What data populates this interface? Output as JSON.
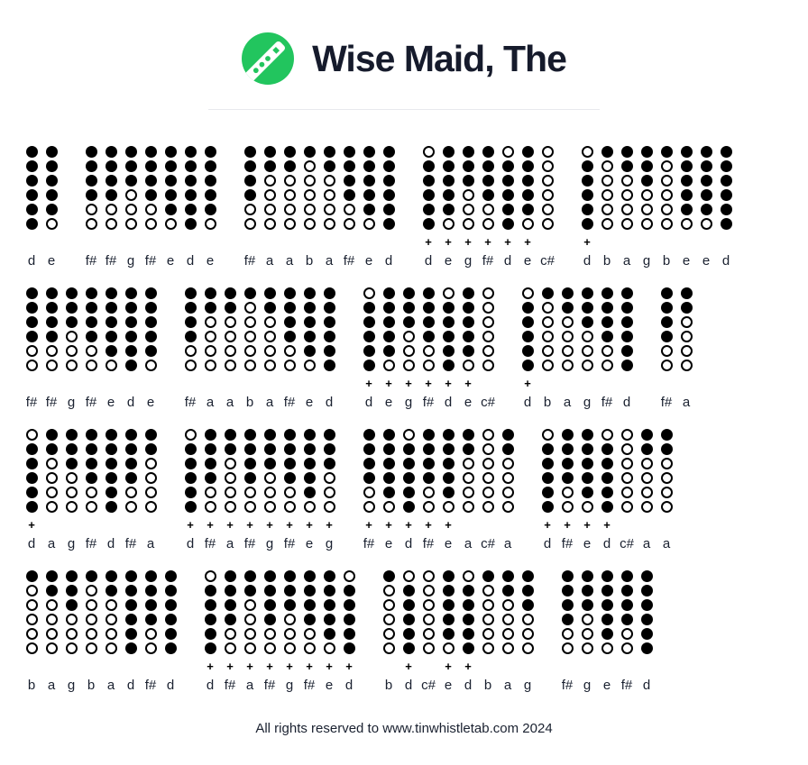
{
  "header": {
    "title": "Wise Maid, The",
    "logo_icon": "tin-whistle-icon"
  },
  "colors": {
    "accent_green": "#22c55e",
    "ink": "#000000",
    "text_dark": "#161b2c",
    "divider": "#e8e9ed"
  },
  "tab": {
    "octave_marker": "+",
    "hole_legend": {
      "1": "closed",
      "0": "open"
    },
    "rows": [
      {
        "groups": [
          {
            "notes": [
              {
                "n": "d",
                "h": "111111",
                "p": false
              },
              {
                "n": "e",
                "h": "111110",
                "p": false
              }
            ]
          },
          {
            "notes": [
              {
                "n": "f#",
                "h": "111100",
                "p": false
              },
              {
                "n": "f#",
                "h": "111100",
                "p": false
              },
              {
                "n": "g",
                "h": "111000",
                "p": false
              },
              {
                "n": "f#",
                "h": "111100",
                "p": false
              },
              {
                "n": "e",
                "h": "111110",
                "p": false
              },
              {
                "n": "d",
                "h": "111111",
                "p": false
              },
              {
                "n": "e",
                "h": "111110",
                "p": false
              }
            ]
          },
          {
            "notes": [
              {
                "n": "f#",
                "h": "111100",
                "p": false
              },
              {
                "n": "a",
                "h": "110000",
                "p": false
              },
              {
                "n": "a",
                "h": "110000",
                "p": false
              },
              {
                "n": "b",
                "h": "100000",
                "p": false
              },
              {
                "n": "a",
                "h": "110000",
                "p": false
              },
              {
                "n": "f#",
                "h": "111100",
                "p": false
              },
              {
                "n": "e",
                "h": "111110",
                "p": false
              },
              {
                "n": "d",
                "h": "111111",
                "p": false
              }
            ]
          },
          {
            "notes": [
              {
                "n": "d",
                "h": "011111",
                "p": true
              },
              {
                "n": "e",
                "h": "111110",
                "p": true
              },
              {
                "n": "g",
                "h": "111000",
                "p": true
              },
              {
                "n": "f#",
                "h": "111100",
                "p": true
              },
              {
                "n": "d",
                "h": "011111",
                "p": true
              },
              {
                "n": "e",
                "h": "111110",
                "p": true
              },
              {
                "n": "c#",
                "h": "000000",
                "p": false
              }
            ]
          },
          {
            "notes": [
              {
                "n": "d",
                "h": "011111",
                "p": true
              },
              {
                "n": "b",
                "h": "100000",
                "p": false
              },
              {
                "n": "a",
                "h": "110000",
                "p": false
              },
              {
                "n": "g",
                "h": "111000",
                "p": false
              },
              {
                "n": "b",
                "h": "100000",
                "p": false
              },
              {
                "n": "e",
                "h": "111110",
                "p": false
              },
              {
                "n": "e",
                "h": "111110",
                "p": false
              },
              {
                "n": "d",
                "h": "111111",
                "p": false
              }
            ]
          }
        ]
      },
      {
        "groups": [
          {
            "notes": [
              {
                "n": "f#",
                "h": "111100",
                "p": false
              },
              {
                "n": "f#",
                "h": "111100",
                "p": false
              },
              {
                "n": "g",
                "h": "111000",
                "p": false
              },
              {
                "n": "f#",
                "h": "111100",
                "p": false
              },
              {
                "n": "e",
                "h": "111110",
                "p": false
              },
              {
                "n": "d",
                "h": "111111",
                "p": false
              },
              {
                "n": "e",
                "h": "111110",
                "p": false
              }
            ]
          },
          {
            "notes": [
              {
                "n": "f#",
                "h": "111100",
                "p": false
              },
              {
                "n": "a",
                "h": "110000",
                "p": false
              },
              {
                "n": "a",
                "h": "110000",
                "p": false
              },
              {
                "n": "b",
                "h": "100000",
                "p": false
              },
              {
                "n": "a",
                "h": "110000",
                "p": false
              },
              {
                "n": "f#",
                "h": "111100",
                "p": false
              },
              {
                "n": "e",
                "h": "111110",
                "p": false
              },
              {
                "n": "d",
                "h": "111111",
                "p": false
              }
            ]
          },
          {
            "notes": [
              {
                "n": "d",
                "h": "011111",
                "p": true
              },
              {
                "n": "e",
                "h": "111110",
                "p": true
              },
              {
                "n": "g",
                "h": "111000",
                "p": true
              },
              {
                "n": "f#",
                "h": "111100",
                "p": true
              },
              {
                "n": "d",
                "h": "011111",
                "p": true
              },
              {
                "n": "e",
                "h": "111110",
                "p": true
              },
              {
                "n": "c#",
                "h": "000000",
                "p": false
              }
            ]
          },
          {
            "notes": [
              {
                "n": "d",
                "h": "011111",
                "p": true
              },
              {
                "n": "b",
                "h": "100000",
                "p": false
              },
              {
                "n": "a",
                "h": "110000",
                "p": false
              },
              {
                "n": "g",
                "h": "111000",
                "p": false
              },
              {
                "n": "f#",
                "h": "111100",
                "p": false
              },
              {
                "n": "d",
                "h": "111111",
                "p": false
              }
            ]
          },
          {
            "notes": [
              {
                "n": "f#",
                "h": "111100",
                "p": false
              },
              {
                "n": "a",
                "h": "110000",
                "p": false
              }
            ]
          }
        ]
      },
      {
        "groups": [
          {
            "notes": [
              {
                "n": "d",
                "h": "011111",
                "p": true
              },
              {
                "n": "a",
                "h": "110000",
                "p": false
              },
              {
                "n": "g",
                "h": "111000",
                "p": false
              },
              {
                "n": "f#",
                "h": "111100",
                "p": false
              },
              {
                "n": "d",
                "h": "111111",
                "p": false
              },
              {
                "n": "f#",
                "h": "111100",
                "p": false
              },
              {
                "n": "a",
                "h": "110000",
                "p": false
              }
            ]
          },
          {
            "notes": [
              {
                "n": "d",
                "h": "011111",
                "p": true
              },
              {
                "n": "f#",
                "h": "111100",
                "p": true
              },
              {
                "n": "a",
                "h": "110000",
                "p": true
              },
              {
                "n": "f#",
                "h": "111100",
                "p": true
              },
              {
                "n": "g",
                "h": "111000",
                "p": true
              },
              {
                "n": "f#",
                "h": "111100",
                "p": true
              },
              {
                "n": "e",
                "h": "111110",
                "p": true
              },
              {
                "n": "g",
                "h": "111000",
                "p": true
              }
            ]
          },
          {
            "notes": [
              {
                "n": "f#",
                "h": "111100",
                "p": true
              },
              {
                "n": "e",
                "h": "111110",
                "p": true
              },
              {
                "n": "d",
                "h": "011111",
                "p": true
              },
              {
                "n": "f#",
                "h": "111100",
                "p": true
              },
              {
                "n": "e",
                "h": "111110",
                "p": true
              },
              {
                "n": "a",
                "h": "110000",
                "p": false
              },
              {
                "n": "c#",
                "h": "000000",
                "p": false
              },
              {
                "n": "a",
                "h": "110000",
                "p": false
              }
            ]
          },
          {
            "notes": [
              {
                "n": "d",
                "h": "011111",
                "p": true
              },
              {
                "n": "f#",
                "h": "111100",
                "p": true
              },
              {
                "n": "e",
                "h": "111110",
                "p": true
              },
              {
                "n": "d",
                "h": "011111",
                "p": true
              },
              {
                "n": "c#",
                "h": "000000",
                "p": false
              },
              {
                "n": "a",
                "h": "110000",
                "p": false
              },
              {
                "n": "a",
                "h": "110000",
                "p": false
              }
            ]
          }
        ]
      },
      {
        "groups": [
          {
            "notes": [
              {
                "n": "b",
                "h": "100000",
                "p": false
              },
              {
                "n": "a",
                "h": "110000",
                "p": false
              },
              {
                "n": "g",
                "h": "111000",
                "p": false
              },
              {
                "n": "b",
                "h": "100000",
                "p": false
              },
              {
                "n": "a",
                "h": "110000",
                "p": false
              },
              {
                "n": "d",
                "h": "111111",
                "p": false
              },
              {
                "n": "f#",
                "h": "111100",
                "p": false
              },
              {
                "n": "d",
                "h": "111111",
                "p": false
              }
            ]
          },
          {
            "notes": [
              {
                "n": "d",
                "h": "011111",
                "p": true
              },
              {
                "n": "f#",
                "h": "111100",
                "p": true
              },
              {
                "n": "a",
                "h": "110000",
                "p": true
              },
              {
                "n": "f#",
                "h": "111100",
                "p": true
              },
              {
                "n": "g",
                "h": "111000",
                "p": true
              },
              {
                "n": "f#",
                "h": "111100",
                "p": true
              },
              {
                "n": "e",
                "h": "111110",
                "p": true
              },
              {
                "n": "d",
                "h": "011111",
                "p": true
              }
            ]
          },
          {
            "notes": [
              {
                "n": "b",
                "h": "100000",
                "p": false
              },
              {
                "n": "d",
                "h": "011111",
                "p": true
              },
              {
                "n": "c#",
                "h": "000000",
                "p": false
              },
              {
                "n": "e",
                "h": "111110",
                "p": true
              },
              {
                "n": "d",
                "h": "011111",
                "p": true
              },
              {
                "n": "b",
                "h": "100000",
                "p": false
              },
              {
                "n": "a",
                "h": "110000",
                "p": false
              },
              {
                "n": "g",
                "h": "111000",
                "p": false
              }
            ]
          },
          {
            "notes": [
              {
                "n": "f#",
                "h": "111100",
                "p": false
              },
              {
                "n": "g",
                "h": "111000",
                "p": false
              },
              {
                "n": "e",
                "h": "111110",
                "p": false
              },
              {
                "n": "f#",
                "h": "111100",
                "p": false
              },
              {
                "n": "d",
                "h": "111111",
                "p": false
              }
            ]
          }
        ]
      }
    ]
  },
  "footer": {
    "text": "All rights reserved to www.tinwhistletab.com 2024"
  }
}
